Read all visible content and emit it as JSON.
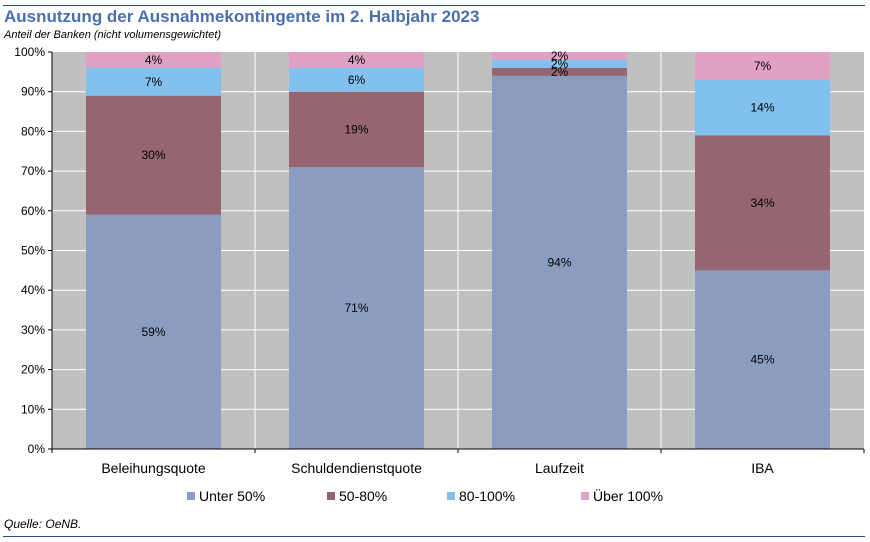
{
  "header": {
    "title": "Ausnutzung der Ausnahmekontingente im 2. Halbjahr 2023",
    "subtitle": "Anteil der Banken (nicht volumensgewichtet)"
  },
  "footer": {
    "source": "Quelle: OeNB."
  },
  "colors": {
    "title": "#4a6faf",
    "rule": "#2f4f7f",
    "plot_background": "#c0c0c0",
    "gridline": "#ffffff"
  },
  "chart_data": {
    "type": "bar",
    "stacked": true,
    "percent_stacked": true,
    "title": "Ausnutzung der Ausnahmekontingente im 2. Halbjahr 2023",
    "subtitle": "Anteil der Banken (nicht volumensgewichtet)",
    "categories": [
      "Beleihungsquote",
      "Schuldendienstquote",
      "Laufzeit",
      "IBA"
    ],
    "ylim": [
      0,
      100
    ],
    "yticks": [
      "0%",
      "10%",
      "20%",
      "30%",
      "40%",
      "50%",
      "60%",
      "70%",
      "80%",
      "90%",
      "100%"
    ],
    "grid": true,
    "legend_position": "bottom",
    "series": [
      {
        "name": "Unter 50%",
        "color": "#8a9dc0",
        "values": [
          59,
          71,
          94,
          45
        ],
        "labels": [
          "59%",
          "71%",
          "94%",
          "45%"
        ]
      },
      {
        "name": "50-80%",
        "color": "#956671",
        "values": [
          30,
          19,
          2,
          34
        ],
        "labels": [
          "30%",
          "19%",
          "2%",
          "34%"
        ]
      },
      {
        "name": "80-100%",
        "color": "#82c1ee",
        "values": [
          7,
          6,
          2,
          14
        ],
        "labels": [
          "7%",
          "6%",
          "2%",
          "14%"
        ]
      },
      {
        "name": "Über 100%",
        "color": "#e1a1c4",
        "values": [
          4,
          4,
          2,
          7
        ],
        "labels": [
          "4%",
          "4%",
          "2%",
          "7%"
        ]
      }
    ]
  }
}
